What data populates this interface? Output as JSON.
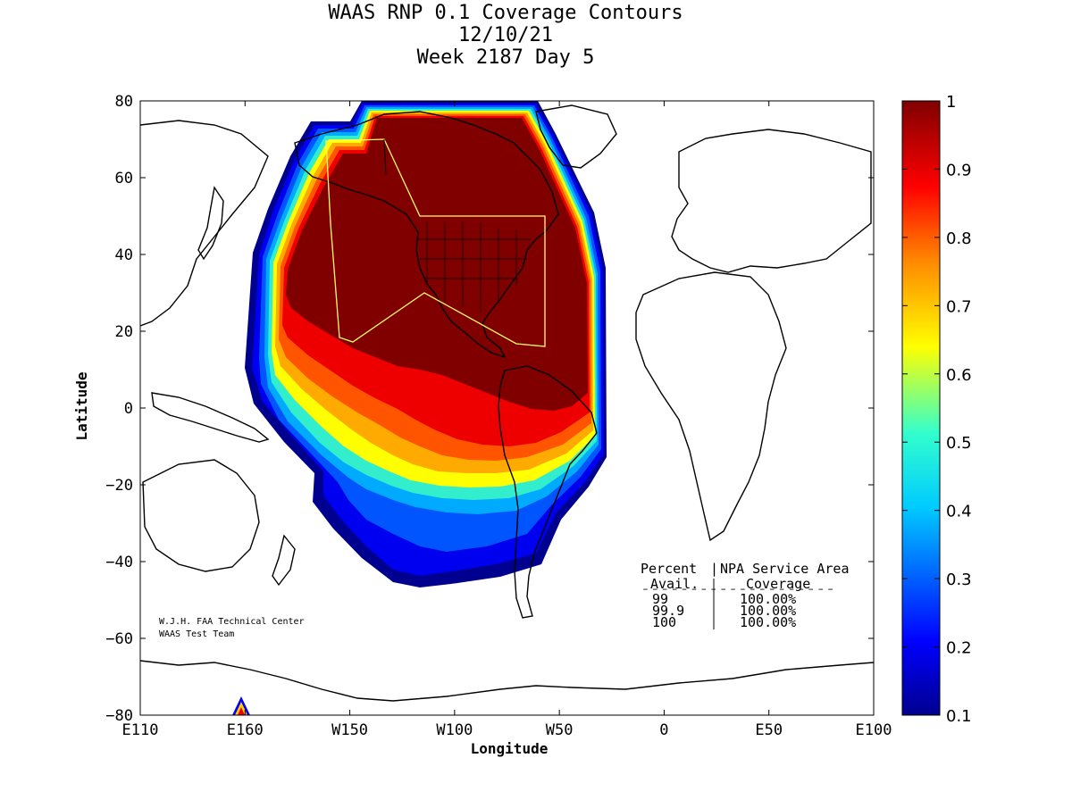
{
  "title": {
    "line1": "WAAS RNP 0.1 Coverage Contours",
    "line2": "12/10/21",
    "line3": "Week 2187 Day 5"
  },
  "axes": {
    "xlabel": "Longitude",
    "ylabel": "Latitude",
    "lon_range": [
      110,
      460
    ],
    "lat_range": [
      -80,
      80
    ],
    "x_ticks": [
      {
        "value": 110,
        "label": "E110"
      },
      {
        "value": 160,
        "label": "E160"
      },
      {
        "value": 210,
        "label": "W150"
      },
      {
        "value": 260,
        "label": "W100"
      },
      {
        "value": 310,
        "label": "W50"
      },
      {
        "value": 360,
        "label": "0"
      },
      {
        "value": 410,
        "label": "E50"
      },
      {
        "value": 460,
        "label": "E100"
      }
    ],
    "y_ticks": [
      {
        "value": 80,
        "label": "80"
      },
      {
        "value": 60,
        "label": "60"
      },
      {
        "value": 40,
        "label": "40"
      },
      {
        "value": 20,
        "label": "20"
      },
      {
        "value": 0,
        "label": "0"
      },
      {
        "value": -20,
        "label": "−20"
      },
      {
        "value": -40,
        "label": "−40"
      },
      {
        "value": -60,
        "label": "−60"
      },
      {
        "value": -80,
        "label": "−80"
      }
    ]
  },
  "colorbar": {
    "min": 0.1,
    "max": 1,
    "ticks": [
      "1",
      "0.9",
      "0.8",
      "0.7",
      "0.6",
      "0.5",
      "0.4",
      "0.3",
      "0.2",
      "0.1"
    ],
    "tick_values": [
      1,
      0.9,
      0.8,
      0.7,
      0.6,
      0.5,
      0.4,
      0.3,
      0.2,
      0.1
    ]
  },
  "credits": {
    "line1": "W.J.H. FAA Technical Center",
    "line2": "WAAS Test Team"
  },
  "coverage_table": {
    "header_left": "Percent",
    "header_sep": "|",
    "header_right": "NPA Service Area",
    "sub_left": "Avail.",
    "sub_right": "Coverage",
    "dash_rule": "--------------------",
    "rows": [
      {
        "avail": "99",
        "coverage": "100.00%"
      },
      {
        "avail": "99.9",
        "coverage": "100.00%"
      },
      {
        "avail": "100",
        "coverage": "100.00%"
      }
    ]
  },
  "colors": {
    "frame": "#000000",
    "service_area": "#ffff66",
    "land_outline": "#000000"
  }
}
